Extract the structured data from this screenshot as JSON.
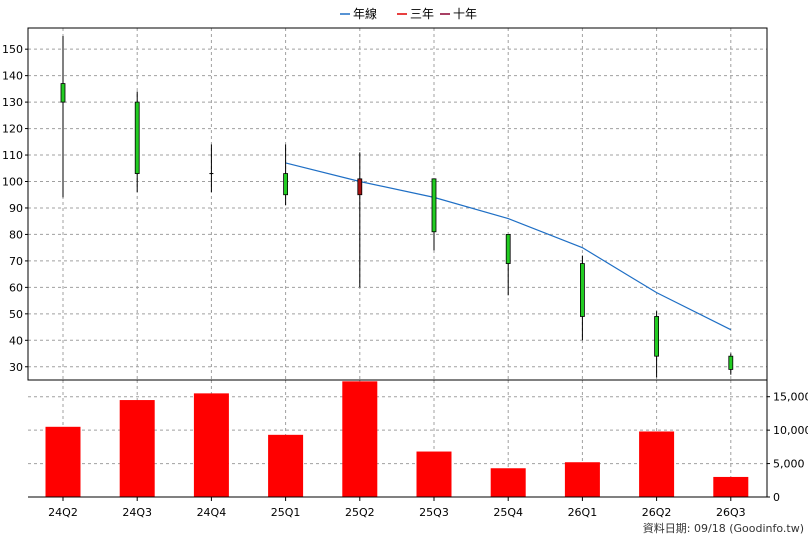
{
  "chart_data": {
    "type": "candlestick+bar",
    "categories": [
      "24Q2",
      "24Q3",
      "24Q4",
      "25Q1",
      "25Q2",
      "25Q3",
      "25Q4",
      "26Q1",
      "26Q2",
      "26Q3"
    ],
    "legend": [
      {
        "name": "年線",
        "color": "#1f6fc5"
      },
      {
        "name": "三年",
        "color": "#e00000"
      },
      {
        "name": "十年",
        "color": "#8b0030"
      }
    ],
    "price": {
      "ylim": [
        25,
        158
      ],
      "ticks": [
        30,
        40,
        50,
        60,
        70,
        80,
        90,
        100,
        110,
        120,
        130,
        140,
        150
      ],
      "candles": [
        {
          "open": 130,
          "close": 137,
          "high": 155,
          "low": 94
        },
        {
          "open": 103,
          "close": 130,
          "high": 134,
          "low": 96
        },
        {
          "open": 103,
          "close": 103,
          "high": 114,
          "low": 96
        },
        {
          "open": 95,
          "close": 103,
          "high": 114,
          "low": 91
        },
        {
          "open": 101,
          "close": 95,
          "high": 111,
          "low": 60
        },
        {
          "open": 81,
          "close": 101,
          "high": 101,
          "low": 74
        },
        {
          "open": 69,
          "close": 80,
          "high": 80,
          "low": 57
        },
        {
          "open": 49,
          "close": 69,
          "high": 72,
          "low": 40
        },
        {
          "open": 34,
          "close": 49,
          "high": 51,
          "low": 26
        },
        {
          "open": 29,
          "close": 34,
          "high": 35,
          "low": 27
        }
      ],
      "annual_line": [
        null,
        null,
        null,
        107,
        100,
        94,
        86,
        75,
        58,
        44
      ]
    },
    "volume": {
      "ylim": [
        0,
        17500
      ],
      "ticks": [
        0,
        5000,
        10000,
        15000
      ],
      "tick_labels": [
        "0",
        "5,000",
        "10,000",
        "15,000"
      ],
      "values": [
        10500,
        14500,
        15500,
        9300,
        17300,
        6800,
        4300,
        5200,
        9800,
        3000
      ],
      "color": "#ff0000"
    },
    "up_color": "#22cc22",
    "down_color": "#aa1111"
  },
  "footer": "資料日期: 09/18  (Goodinfo.tw)"
}
